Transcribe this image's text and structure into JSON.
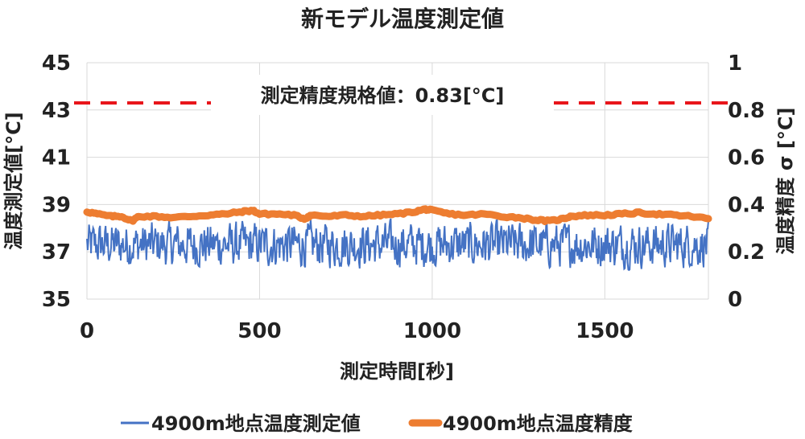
{
  "chart_data": {
    "type": "line",
    "title": "新モデル温度測定値",
    "xlabel": "測定時間[秒]",
    "ylabel": "温度測定値[°C]",
    "y2label": "温度精度 σ [°C]",
    "xlim": [
      0,
      1800
    ],
    "ylim": [
      35,
      45
    ],
    "y2lim": [
      0,
      1
    ],
    "xticks": [
      "0",
      "500",
      "1000",
      "1500"
    ],
    "yticks": [
      "35",
      "37",
      "39",
      "41",
      "43",
      "45"
    ],
    "y2ticks": [
      "0",
      "0.2",
      "0.4",
      "0.6",
      "0.8",
      "1"
    ],
    "grid": true,
    "legend_position": "bottom",
    "annotation": {
      "text": "測定精度規格値：0.83[°C]",
      "value": 0.83,
      "axis": "y2",
      "color": "#e8151b"
    },
    "series": [
      {
        "name": "4900m地点温度測定値",
        "axis": "y",
        "color": "#4472c4",
        "mean": 37.3,
        "amplitude": 0.9,
        "x_step": 2
      },
      {
        "name": "4900m地点温度精度",
        "axis": "y2",
        "color": "#ed7d31",
        "x": [
          0,
          30,
          70,
          100,
          130,
          150,
          200,
          250,
          300,
          350,
          400,
          450,
          480,
          500,
          550,
          600,
          630,
          650,
          700,
          750,
          800,
          850,
          900,
          950,
          980,
          1000,
          1050,
          1100,
          1150,
          1200,
          1250,
          1300,
          1340,
          1380,
          1400,
          1450,
          1500,
          1550,
          1600,
          1650,
          1700,
          1750,
          1800
        ],
        "values": [
          0.37,
          0.36,
          0.35,
          0.35,
          0.33,
          0.35,
          0.35,
          0.345,
          0.35,
          0.355,
          0.36,
          0.37,
          0.375,
          0.36,
          0.36,
          0.355,
          0.34,
          0.355,
          0.35,
          0.355,
          0.35,
          0.355,
          0.36,
          0.37,
          0.38,
          0.375,
          0.36,
          0.355,
          0.36,
          0.35,
          0.345,
          0.335,
          0.33,
          0.34,
          0.35,
          0.355,
          0.355,
          0.36,
          0.365,
          0.36,
          0.355,
          0.35,
          0.34
        ]
      }
    ]
  }
}
